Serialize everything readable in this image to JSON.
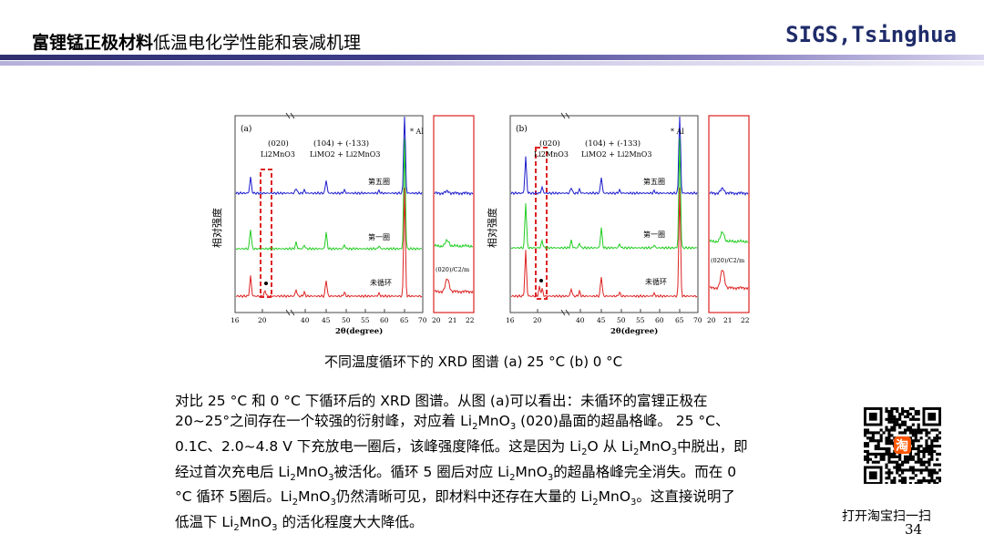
{
  "header": {
    "title_bold": "富锂锰正极材料",
    "title_rest": "低温电化学性能和衰减机理",
    "brand": "SIGS,Tsinghua"
  },
  "figure_a": {
    "panel": "(a)",
    "peak_020": "(020)",
    "peak_020_compound": "Li2MnO3",
    "peak_104": "(104) + (-133)",
    "peak_104_compound": "LiMO2 + Li2MnO3",
    "al_label": "* Al",
    "ylabel": "相对强度",
    "xlabel": "2θ(degree)",
    "curve_labels": [
      "第五圈",
      "第一圈",
      "未循环"
    ],
    "inset_label": "(020)/C2/m",
    "xticks_main": [
      "16",
      "20",
      "40",
      "45",
      "50",
      "55",
      "60",
      "65",
      "70"
    ],
    "xticks_inset": [
      "20",
      "21",
      "22"
    ]
  },
  "figure_b": {
    "panel": "(b)",
    "peak_020": "(020)",
    "peak_020_compound": "Li2MnO3",
    "peak_104": "(104) + (-133)",
    "peak_104_compound": "LiMO2 + Li2MnO3",
    "al_label": "* Al",
    "ylabel": "相对强度",
    "xlabel": "2θ(degree)",
    "curve_labels": [
      "第五圈",
      "第一圈",
      "未循环"
    ],
    "inset_label": "(020)/C2/m",
    "xticks_main": [
      "16",
      "20",
      "40",
      "45",
      "50",
      "55",
      "60",
      "65",
      "70"
    ],
    "xticks_inset": [
      "20",
      "21",
      "22"
    ]
  },
  "caption": "不同温度循环下的 XRD 图谱 (a) 25 °C (b) 0 °C",
  "paragraph": {
    "lines": [
      [
        "对比 25 °C 和 0 °C 下循环后的 XRD 图谱。从图 (a)可以看出：未循环的富锂正极在"
      ],
      [
        "20~25°之间存在一个较强的衍射峰，对应着 Li",
        {
          "sub": "2"
        },
        "MnO",
        {
          "sub": "3"
        },
        " (020)晶面的超晶格峰。 25 °C、"
      ],
      [
        "0.1C、2.0~4.8 V 下充放电一圈后，该峰强度降低。这是因为 Li",
        {
          "sub": "2"
        },
        "O 从 Li",
        {
          "sub": "2"
        },
        "MnO",
        {
          "sub": "3"
        },
        "中脱出，即"
      ],
      [
        "经过首次充电后 Li",
        {
          "sub": "2"
        },
        "MnO",
        {
          "sub": "3"
        },
        "被活化。循环 5 圈后对应 Li",
        {
          "sub": "2"
        },
        "MnO",
        {
          "sub": "3"
        },
        "的超晶格峰完全消失。而在 0"
      ],
      [
        "°C 循环 5圈后。Li",
        {
          "sub": "2"
        },
        "MnO",
        {
          "sub": "3"
        },
        "仍然清晰可见，即材料中还存在大量的 Li",
        {
          "sub": "2"
        },
        "MnO",
        {
          "sub": "3"
        },
        "。这直接说明了"
      ],
      [
        "低温下 Li",
        {
          "sub": "2"
        },
        "MnO",
        {
          "sub": "3"
        },
        " 的活化程度大大降低。"
      ]
    ]
  },
  "qr_label": "打开淘宝扫一扫",
  "qr_badge": "淘",
  "page_number": "34",
  "colors": {
    "blue": "#1a1acc",
    "green": "#22cc22",
    "red": "#dd2222",
    "brand": "#1f2c6a"
  }
}
